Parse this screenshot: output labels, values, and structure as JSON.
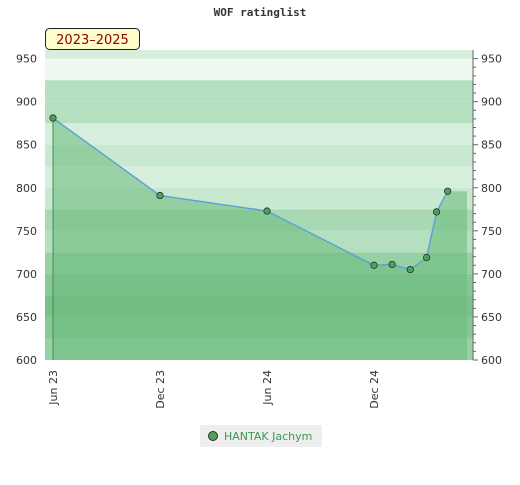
{
  "chart_data": {
    "type": "area",
    "title": "WOF ratinglist",
    "badge": "2023–2025",
    "x_ticks": [
      "Jun 23",
      "Dec 23",
      "Jun 24",
      "Dec 24"
    ],
    "y_ticks": [
      600,
      650,
      700,
      750,
      800,
      850,
      900,
      950
    ],
    "ylim": [
      600,
      960
    ],
    "x": [
      "2023-06-15",
      "2023-12-15",
      "2024-06-15",
      "2024-12-15",
      "2025-01-15",
      "2025-02-15",
      "2025-03-15",
      "2025-04-01",
      "2025-04-20"
    ],
    "series": [
      {
        "name": "HANTAK Jachym",
        "values": [
          881,
          791,
          773,
          710,
          711,
          705,
          719,
          772,
          796
        ]
      }
    ],
    "legend_position": "bottom-center",
    "colors": {
      "line": "#5aa0d8",
      "fill": "#6ab97a",
      "marker": "#4ca35a",
      "legend_text": "#3a9a4e"
    }
  },
  "legend": {
    "label": "HANTAK Jachym"
  }
}
